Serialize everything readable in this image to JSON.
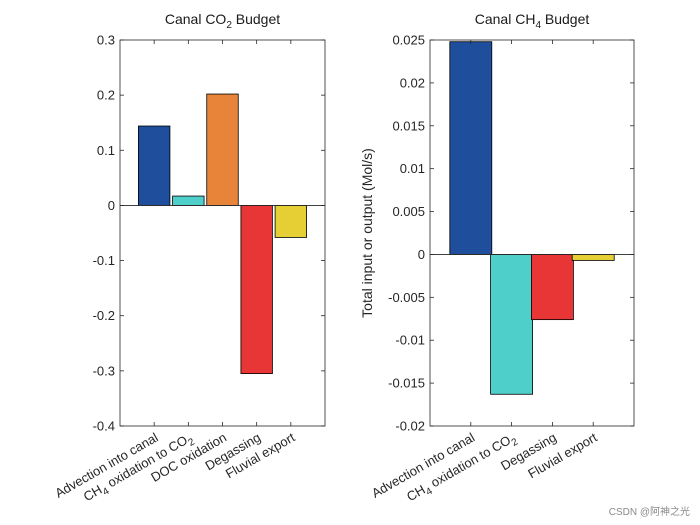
{
  "chart_data": [
    {
      "type": "bar",
      "title": "Canal CO2 Budget",
      "title_main": "Canal CO",
      "title_sub": "2",
      "title_tail": " Budget",
      "ylabel": "",
      "ylim": [
        -0.4,
        0.3
      ],
      "yticks": [
        -0.4,
        -0.3,
        -0.2,
        -0.1,
        0,
        0.1,
        0.2,
        0.3
      ],
      "ytick_labels": [
        "-0.4",
        "-0.3",
        "-0.2",
        "-0.1",
        "0",
        "0.1",
        "0.2",
        "0.3"
      ],
      "categories": [
        {
          "main": "Advection into canal",
          "sub": "",
          "tail": ""
        },
        {
          "main": "CH",
          "sub": "4",
          "tail": " oxidation to CO",
          "sub2": "2"
        },
        {
          "main": "DOC oxidation",
          "sub": "",
          "tail": ""
        },
        {
          "main": "Degassing",
          "sub": "",
          "tail": ""
        },
        {
          "main": "Fluvial export",
          "sub": "",
          "tail": ""
        }
      ],
      "values": [
        0.144,
        0.017,
        0.202,
        -0.305,
        -0.058
      ],
      "colors": [
        "#1f4e9c",
        "#4ecfca",
        "#e8843a",
        "#e83535",
        "#e6cf35"
      ]
    },
    {
      "type": "bar",
      "title": "Canal CH4 Budget",
      "title_main": "Canal CH",
      "title_sub": "4",
      "title_tail": " Budget",
      "ylabel": "Total input or output (Mol/s)",
      "ylim": [
        -0.02,
        0.025
      ],
      "yticks": [
        -0.02,
        -0.015,
        -0.01,
        -0.005,
        0,
        0.005,
        0.01,
        0.015,
        0.02,
        0.025
      ],
      "ytick_labels": [
        "-0.02",
        "-0.015",
        "-0.01",
        "-0.005",
        "0",
        "0.005",
        "0.01",
        "0.015",
        "0.02",
        "0.025"
      ],
      "categories": [
        {
          "main": "Advection into canal",
          "sub": "",
          "tail": ""
        },
        {
          "main": "CH",
          "sub": "4",
          "tail": " oxidation to CO",
          "sub2": "2"
        },
        {
          "main": "Degassing",
          "sub": "",
          "tail": ""
        },
        {
          "main": "Fluvial export",
          "sub": "",
          "tail": ""
        }
      ],
      "values": [
        0.0248,
        -0.0163,
        -0.0076,
        -0.0007
      ],
      "colors": [
        "#1f4e9c",
        "#4ecfca",
        "#e83535",
        "#e6cf35"
      ]
    }
  ],
  "watermark": "CSDN @阿神之光"
}
